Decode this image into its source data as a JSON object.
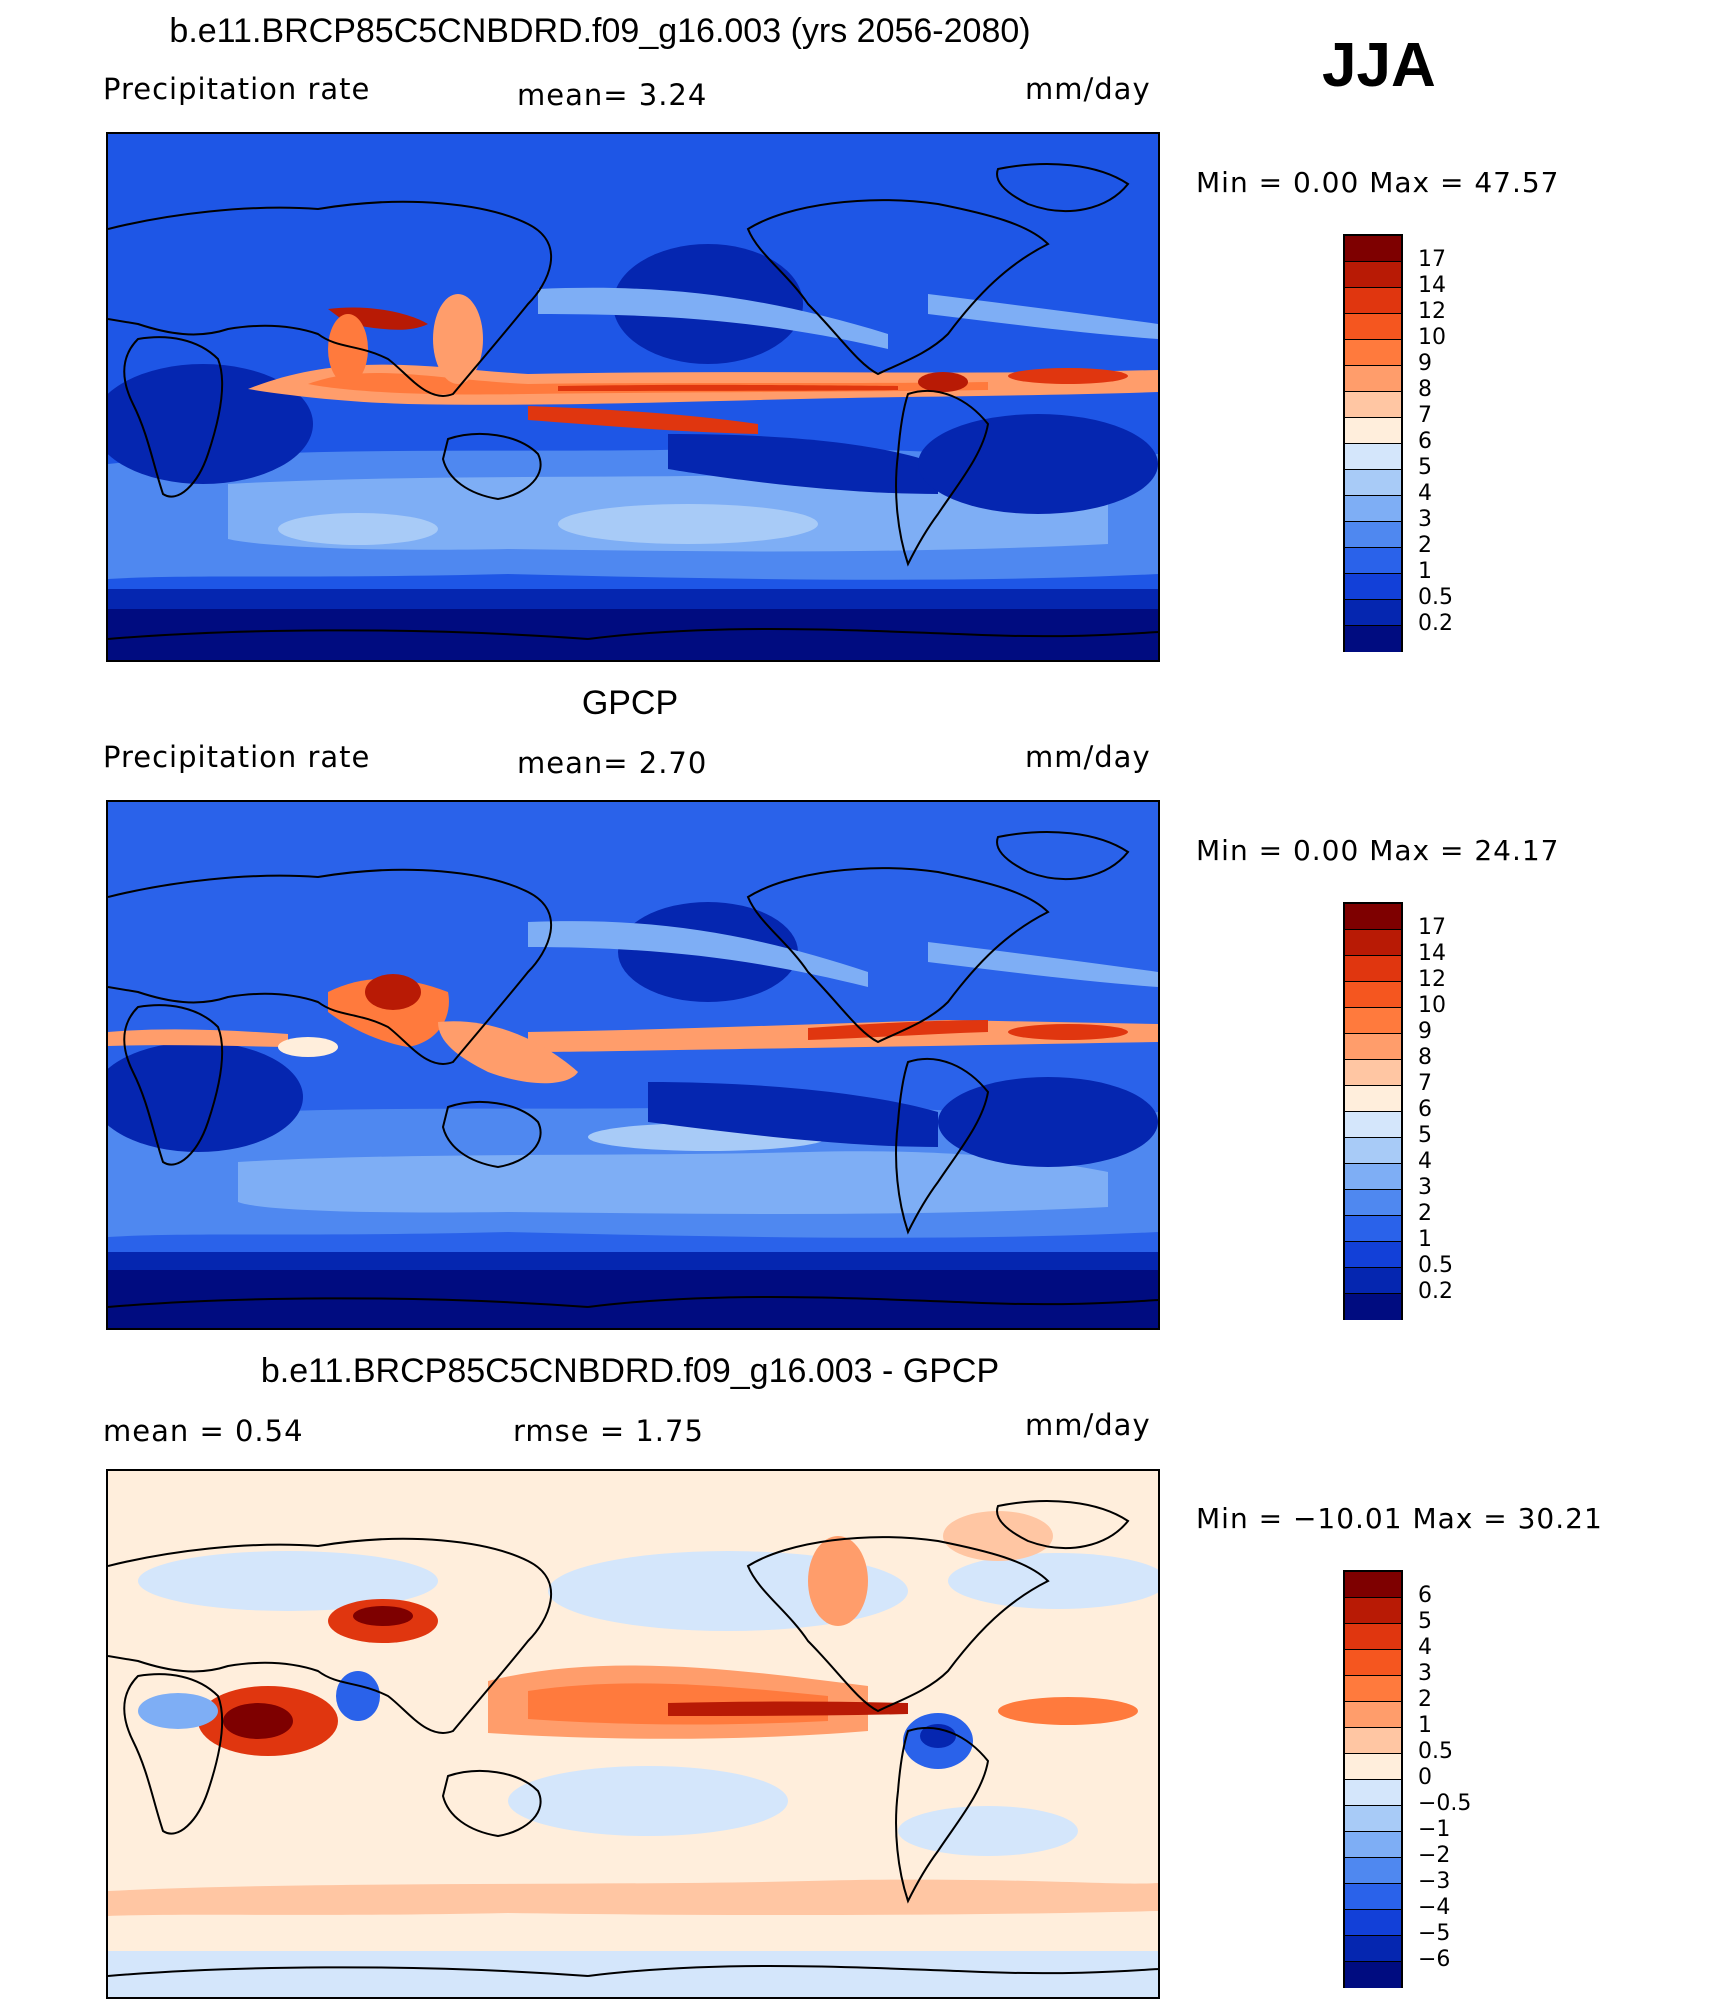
{
  "season": "JJA",
  "chart_data": [
    {
      "type": "heatmap",
      "title": "b.e11.BRCP85C5CNBDRD.f09_g16.003 (yrs 2056-2080)",
      "subtitle_left": "Precipitation  rate",
      "mean_text": "mean=    3.24",
      "units": "mm/day",
      "min_max": "Min  =      0.00  Max  =     47.57",
      "stats": {
        "mean": 3.24,
        "min": 0.0,
        "max": 47.57
      },
      "colorbar": {
        "labels": [
          "17",
          "14",
          "12",
          "10",
          "9",
          "8",
          "7",
          "6",
          "5",
          "4",
          "3",
          "2",
          "1",
          "0.5",
          "0.2"
        ],
        "colors": [
          "#7e0000",
          "#b81a05",
          "#e0360f",
          "#f5561f",
          "#ff7a3d",
          "#ff9d6b",
          "#ffc6a3",
          "#ffeedc",
          "#d4e6fb",
          "#a8cbf7",
          "#7eaef5",
          "#4f88f0",
          "#2a62ea",
          "#1240d8",
          "#0526b0",
          "#000c80"
        ]
      }
    },
    {
      "type": "heatmap",
      "title": "GPCP",
      "subtitle_left": "Precipitation  rate",
      "mean_text": "mean=    2.70",
      "units": "mm/day",
      "min_max": "Min  =      0.00  Max  =     24.17",
      "stats": {
        "mean": 2.7,
        "min": 0.0,
        "max": 24.17
      },
      "colorbar": {
        "labels": [
          "17",
          "14",
          "12",
          "10",
          "9",
          "8",
          "7",
          "6",
          "5",
          "4",
          "3",
          "2",
          "1",
          "0.5",
          "0.2"
        ],
        "colors": [
          "#7e0000",
          "#b81a05",
          "#e0360f",
          "#f5561f",
          "#ff7a3d",
          "#ff9d6b",
          "#ffc6a3",
          "#ffeedc",
          "#d4e6fb",
          "#a8cbf7",
          "#7eaef5",
          "#4f88f0",
          "#2a62ea",
          "#1240d8",
          "#0526b0",
          "#000c80"
        ]
      }
    },
    {
      "type": "heatmap",
      "title": "b.e11.BRCP85C5CNBDRD.f09_g16.003 - GPCP",
      "subtitle_left": "mean  =     0.54",
      "mean_text": "rmse  =     1.75",
      "units": "mm/day",
      "min_max": "Min  =  −10.01  Max  =     30.21",
      "stats": {
        "mean": 0.54,
        "rmse": 1.75,
        "min": -10.01,
        "max": 30.21
      },
      "colorbar": {
        "labels": [
          "6",
          "5",
          "4",
          "3",
          "2",
          "1",
          "0.5",
          "0",
          "−0.5",
          "−1",
          "−2",
          "−3",
          "−4",
          "−5",
          "−6"
        ],
        "colors": [
          "#7e0000",
          "#b81a05",
          "#e0360f",
          "#f5561f",
          "#ff7a3d",
          "#ff9d6b",
          "#ffc6a3",
          "#ffeedc",
          "#d4e6fb",
          "#a8cbf7",
          "#7eaef5",
          "#4f88f0",
          "#2a62ea",
          "#1240d8",
          "#0526b0",
          "#000c80"
        ]
      }
    }
  ]
}
